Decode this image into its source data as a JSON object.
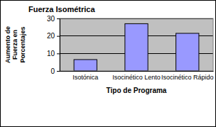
{
  "chart_data": {
    "type": "bar",
    "title": "Fuerza Isométrica",
    "x_label": "Tipo de Programa",
    "y_label": "Aumento de Fuerza en Porcentajes",
    "categories": [
      "Isotónica",
      "Isocinético Lento",
      "Isocinético Rápido"
    ],
    "values": [
      6.5,
      27,
      21.5
    ],
    "color": "#9999ff",
    "ylim": [
      0,
      30
    ],
    "yticks": [
      0,
      10,
      20,
      30
    ],
    "grid": true
  }
}
